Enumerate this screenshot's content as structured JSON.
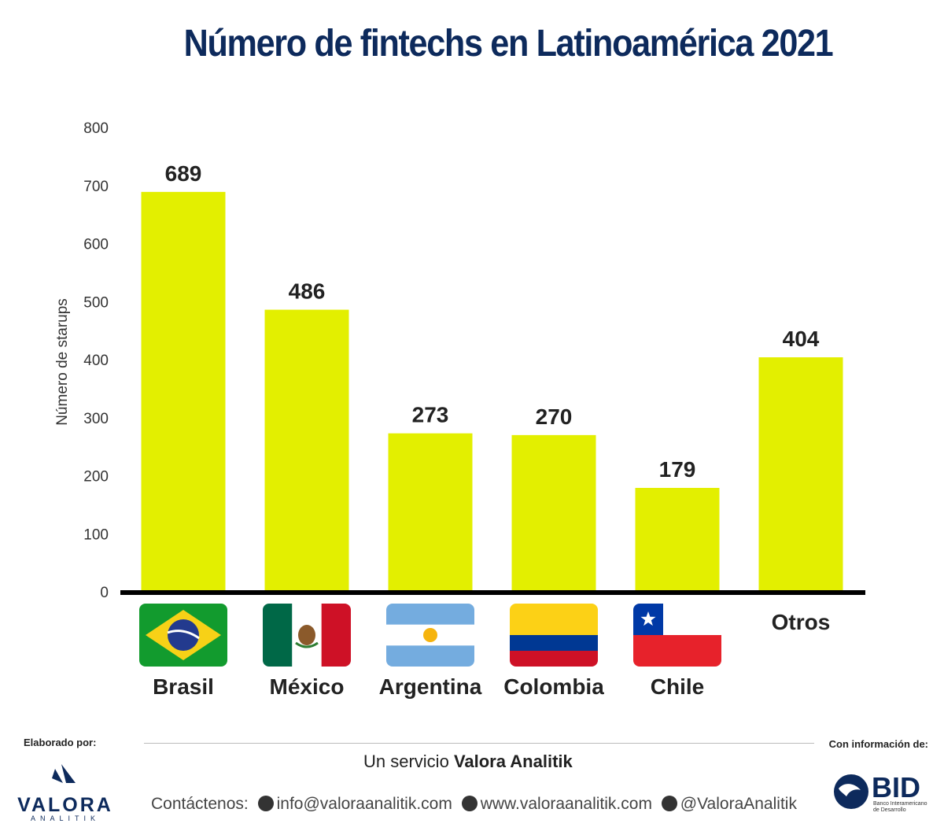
{
  "title": "Número de fintechs en Latinoamérica 2021",
  "chart_data": {
    "type": "bar",
    "categories": [
      "Brasil",
      "México",
      "Argentina",
      "Colombia",
      "Chile",
      "Otros"
    ],
    "values": [
      689,
      486,
      273,
      270,
      179,
      404
    ],
    "ylabel": "Número de starups",
    "xlabel": "",
    "ylim": [
      0,
      800
    ],
    "yticks": [
      0,
      100,
      200,
      300,
      400,
      500,
      600,
      700,
      800
    ],
    "bar_color": "#e3ef00",
    "axis_color": "#000000",
    "data_labels": true,
    "grid": false,
    "category_icons": [
      "flag-brazil",
      "flag-mexico",
      "flag-argentina",
      "flag-colombia",
      "flag-chile",
      ""
    ]
  },
  "footer": {
    "made_by_label": "Elaborado por:",
    "info_label": "Con información de:",
    "service_prefix": "Un servicio",
    "service_brand": "Valora Analitik",
    "contact_label": "Contáctenos:",
    "email": "info@valoraanalitik.com",
    "website": "www.valoraanalitik.com",
    "twitter": "@ValoraAnalitik",
    "valora_name": "VALORA",
    "valora_sub": "ANALITIK",
    "bid_name": "BID",
    "bid_sub_1": "Banco Interamericano",
    "bid_sub_2": "de Desarrollo"
  }
}
